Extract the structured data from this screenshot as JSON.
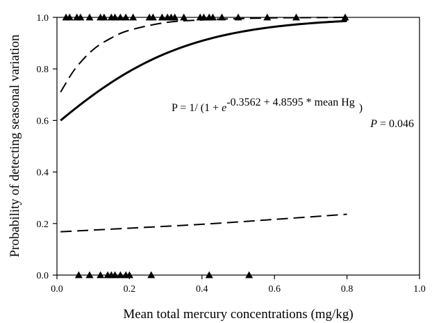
{
  "chart_data": {
    "type": "scatter",
    "title": "",
    "xlabel": "Mean total mercury concentrations (mg/kg)",
    "ylabel": "Probability of detecting seasonal variation",
    "xlim": [
      0.0,
      1.0
    ],
    "ylim": [
      0.0,
      1.0
    ],
    "x_ticks": [
      "0.0",
      "0.2",
      "0.4",
      "0.6",
      "0.8",
      "1.0"
    ],
    "y_ticks": [
      "0.0",
      "0.2",
      "0.4",
      "0.6",
      "0.8",
      "1.0"
    ],
    "grid": false,
    "legend": "none",
    "marker": "triangle",
    "series": [
      {
        "points_y1": [
          0.025,
          0.035,
          0.055,
          0.065,
          0.09,
          0.12,
          0.13,
          0.15,
          0.16,
          0.175,
          0.19,
          0.21,
          0.255,
          0.265,
          0.29,
          0.305,
          0.315,
          0.325,
          0.35,
          0.395,
          0.405,
          0.42,
          0.43,
          0.455,
          0.5,
          0.58,
          0.66,
          0.795
        ],
        "points_y0": [
          0.06,
          0.09,
          0.12,
          0.14,
          0.15,
          0.16,
          0.175,
          0.19,
          0.2,
          0.26,
          0.42,
          0.53
        ]
      }
    ],
    "fit_curve": {
      "style": "solid",
      "x_range": [
        0.01,
        0.8
      ],
      "b0": -0.3562,
      "b1": 4.8595
    },
    "ci_upper": {
      "style": "dashed",
      "x": [
        0.01,
        0.05,
        0.1,
        0.15,
        0.2,
        0.3,
        0.4,
        0.5,
        0.6,
        0.7,
        0.8
      ],
      "y": [
        0.71,
        0.8,
        0.875,
        0.92,
        0.95,
        0.98,
        0.99,
        0.995,
        0.998,
        0.999,
        1.0
      ]
    },
    "ci_lower": {
      "style": "dashed",
      "x": [
        0.01,
        0.2,
        0.4,
        0.6,
        0.8
      ],
      "y": [
        0.168,
        0.182,
        0.197,
        0.216,
        0.236
      ]
    },
    "annotations": {
      "equation_prefix": "P = 1/ (1 + ",
      "equation_e": "e",
      "equation_exponent": "-0.3562 + 4.8595 * mean Hg",
      "equation_suffix": ")",
      "p_italic": "P",
      "p_value": " = 0.046"
    }
  }
}
